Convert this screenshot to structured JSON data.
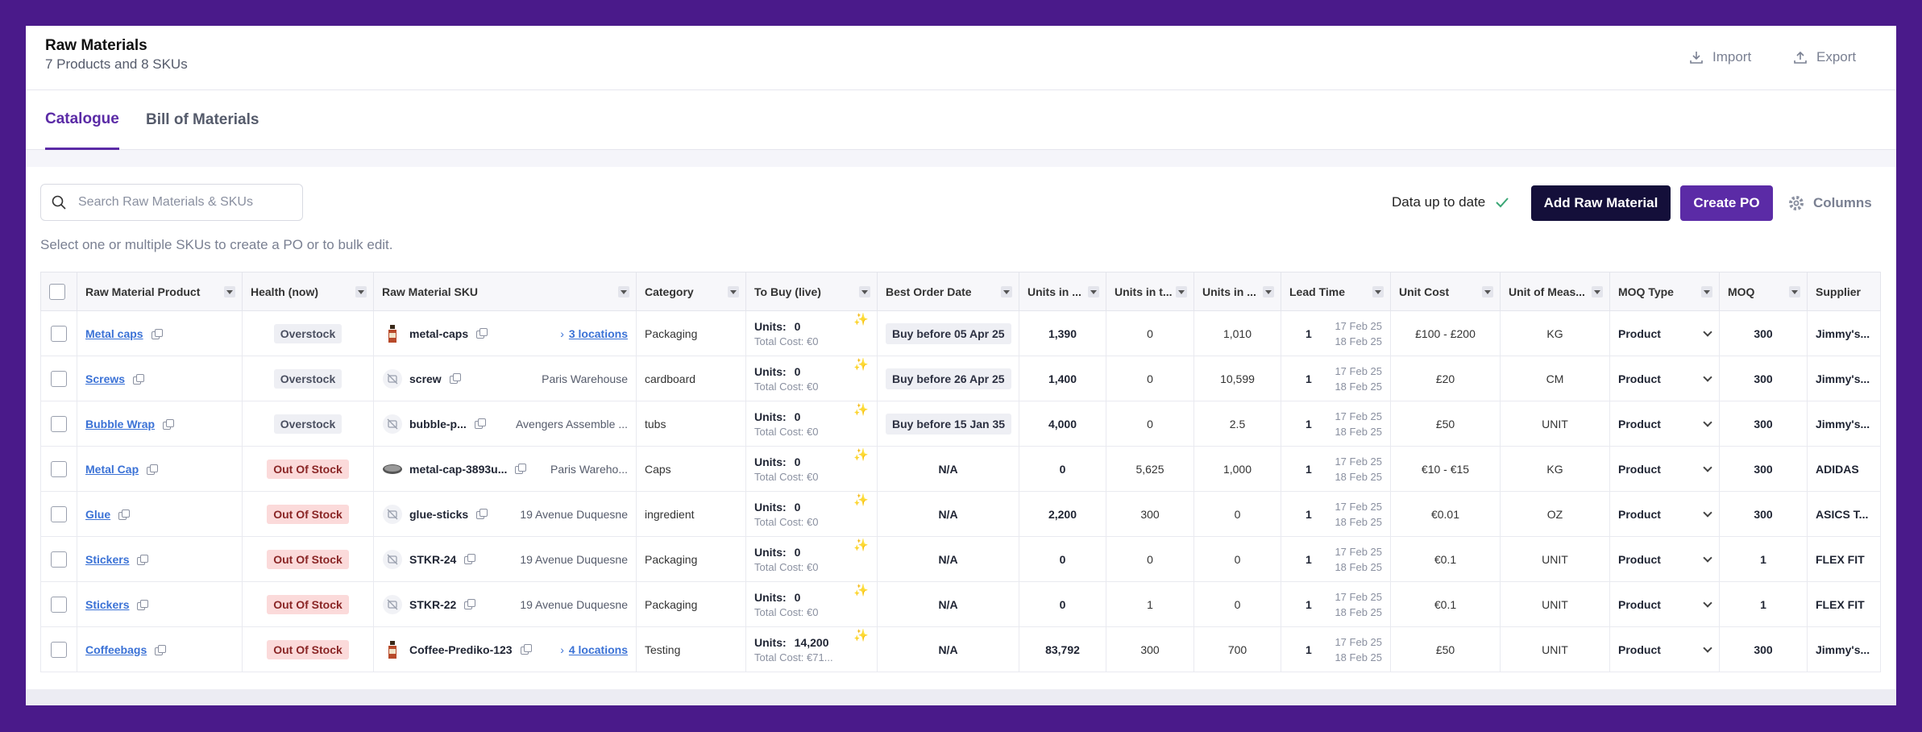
{
  "header": {
    "title": "Raw Materials",
    "subtitle": "7 Products and 8 SKUs",
    "import_label": "Import",
    "export_label": "Export"
  },
  "tabs": [
    {
      "label": "Catalogue",
      "active": true
    },
    {
      "label": "Bill of Materials",
      "active": false
    }
  ],
  "toolbar": {
    "search_placeholder": "Search Raw Materials & SKUs",
    "hint": "Select one or multiple SKUs to create a PO or to bulk edit.",
    "status": "Data up to date",
    "add_label": "Add Raw Material",
    "create_po_label": "Create PO",
    "columns_label": "Columns"
  },
  "colors": {
    "accent": "#5b2ba6",
    "dark_button": "#140f3a",
    "link": "#3b72d6",
    "out_of_stock_bg": "#fbdada",
    "background": "#4a1a8a"
  },
  "table": {
    "headers": [
      "Raw Material Product",
      "Health (now)",
      "Raw Material SKU",
      "Category",
      "To Buy (live)",
      "Best Order Date",
      "Units in ...",
      "Units in t...",
      "Units in ...",
      "Lead Time",
      "Unit Cost",
      "Unit of Meas...",
      "MOQ Type",
      "MOQ",
      "Supplier"
    ],
    "rows": [
      {
        "product": "Metal caps",
        "health": "Overstock",
        "sku_icon": "bottle-image",
        "sku": "metal-caps",
        "location": "3 locations",
        "location_link": true,
        "category": "Packaging",
        "units_label": "Units:",
        "units": "0",
        "total_cost": "Total Cost: €0",
        "best_date": "Buy before 05 Apr 25",
        "u1": "1,390",
        "u2": "0",
        "u3": "1,010",
        "lead": "1",
        "d1": "17 Feb 25",
        "d2": "18 Feb 25",
        "cost": "£100 - £200",
        "uom": "KG",
        "moq_type": "Product",
        "moq": "300",
        "supplier": "Jimmy's..."
      },
      {
        "product": "Screws",
        "health": "Overstock",
        "sku_icon": "no-image-icon",
        "sku": "screw",
        "location": "Paris Warehouse",
        "location_link": false,
        "category": "cardboard",
        "units_label": "Units:",
        "units": "0",
        "total_cost": "Total Cost: €0",
        "best_date": "Buy before 26 Apr 25",
        "u1": "1,400",
        "u2": "0",
        "u3": "10,599",
        "lead": "1",
        "d1": "17 Feb 25",
        "d2": "18 Feb 25",
        "cost": "£20",
        "uom": "CM",
        "moq_type": "Product",
        "moq": "300",
        "supplier": "Jimmy's..."
      },
      {
        "product": "Bubble Wrap",
        "health": "Overstock",
        "sku_icon": "no-image-icon",
        "sku": "bubble-p...",
        "location": "Avengers Assemble ...",
        "location_link": false,
        "category": "tubs",
        "units_label": "Units:",
        "units": "0",
        "total_cost": "Total Cost: €0",
        "best_date": "Buy before 15 Jan 35",
        "u1": "4,000",
        "u2": "0",
        "u3": "2.5",
        "lead": "1",
        "d1": "17 Feb 25",
        "d2": "18 Feb 25",
        "cost": "£50",
        "uom": "UNIT",
        "moq_type": "Product",
        "moq": "300",
        "supplier": "Jimmy's..."
      },
      {
        "product": "Metal Cap",
        "health": "Out Of Stock",
        "sku_icon": "cap-image",
        "sku": "metal-cap-3893u...",
        "location": "Paris Wareho...",
        "location_link": false,
        "category": "Caps",
        "units_label": "Units:",
        "units": "0",
        "total_cost": "Total Cost: €0",
        "best_date": "N/A",
        "u1": "0",
        "u2": "5,625",
        "u3": "1,000",
        "lead": "1",
        "d1": "17 Feb 25",
        "d2": "18 Feb 25",
        "cost": "€10 - €15",
        "uom": "KG",
        "moq_type": "Product",
        "moq": "300",
        "supplier": "ADIDAS"
      },
      {
        "product": "Glue",
        "health": "Out Of Stock",
        "sku_icon": "no-image-icon",
        "sku": "glue-sticks",
        "location": "19 Avenue Duquesne",
        "location_link": false,
        "category": "ingredient",
        "units_label": "Units:",
        "units": "0",
        "total_cost": "Total Cost: €0",
        "best_date": "N/A",
        "u1": "2,200",
        "u2": "300",
        "u3": "0",
        "lead": "1",
        "d1": "17 Feb 25",
        "d2": "18 Feb 25",
        "cost": "€0.01",
        "uom": "OZ",
        "moq_type": "Product",
        "moq": "300",
        "supplier": "ASICS T..."
      },
      {
        "product": "Stickers",
        "health": "Out Of Stock",
        "sku_icon": "no-image-icon",
        "sku": "STKR-24",
        "location": "19 Avenue Duquesne",
        "location_link": false,
        "category": "Packaging",
        "units_label": "Units:",
        "units": "0",
        "total_cost": "Total Cost: €0",
        "best_date": "N/A",
        "u1": "0",
        "u2": "0",
        "u3": "0",
        "lead": "1",
        "d1": "17 Feb 25",
        "d2": "18 Feb 25",
        "cost": "€0.1",
        "uom": "UNIT",
        "moq_type": "Product",
        "moq": "1",
        "supplier": "FLEX FIT"
      },
      {
        "product": "Stickers",
        "health": "Out Of Stock",
        "sku_icon": "no-image-icon",
        "sku": "STKR-22",
        "location": "19 Avenue Duquesne",
        "location_link": false,
        "category": "Packaging",
        "units_label": "Units:",
        "units": "0",
        "total_cost": "Total Cost: €0",
        "best_date": "N/A",
        "u1": "0",
        "u2": "1",
        "u3": "0",
        "lead": "1",
        "d1": "17 Feb 25",
        "d2": "18 Feb 25",
        "cost": "€0.1",
        "uom": "UNIT",
        "moq_type": "Product",
        "moq": "1",
        "supplier": "FLEX FIT"
      },
      {
        "product": "Coffeebags",
        "health": "Out Of Stock",
        "sku_icon": "bottle-image",
        "sku": "Coffee-Prediko-123",
        "location": "4 locations",
        "location_link": true,
        "category": "Testing",
        "units_label": "Units:",
        "units": "14,200",
        "total_cost": "Total Cost: €71...",
        "best_date": "N/A",
        "u1": "83,792",
        "u2": "300",
        "u3": "700",
        "lead": "1",
        "d1": "17 Feb 25",
        "d2": "18 Feb 25",
        "cost": "£50",
        "uom": "UNIT",
        "moq_type": "Product",
        "moq": "300",
        "supplier": "Jimmy's..."
      }
    ]
  }
}
